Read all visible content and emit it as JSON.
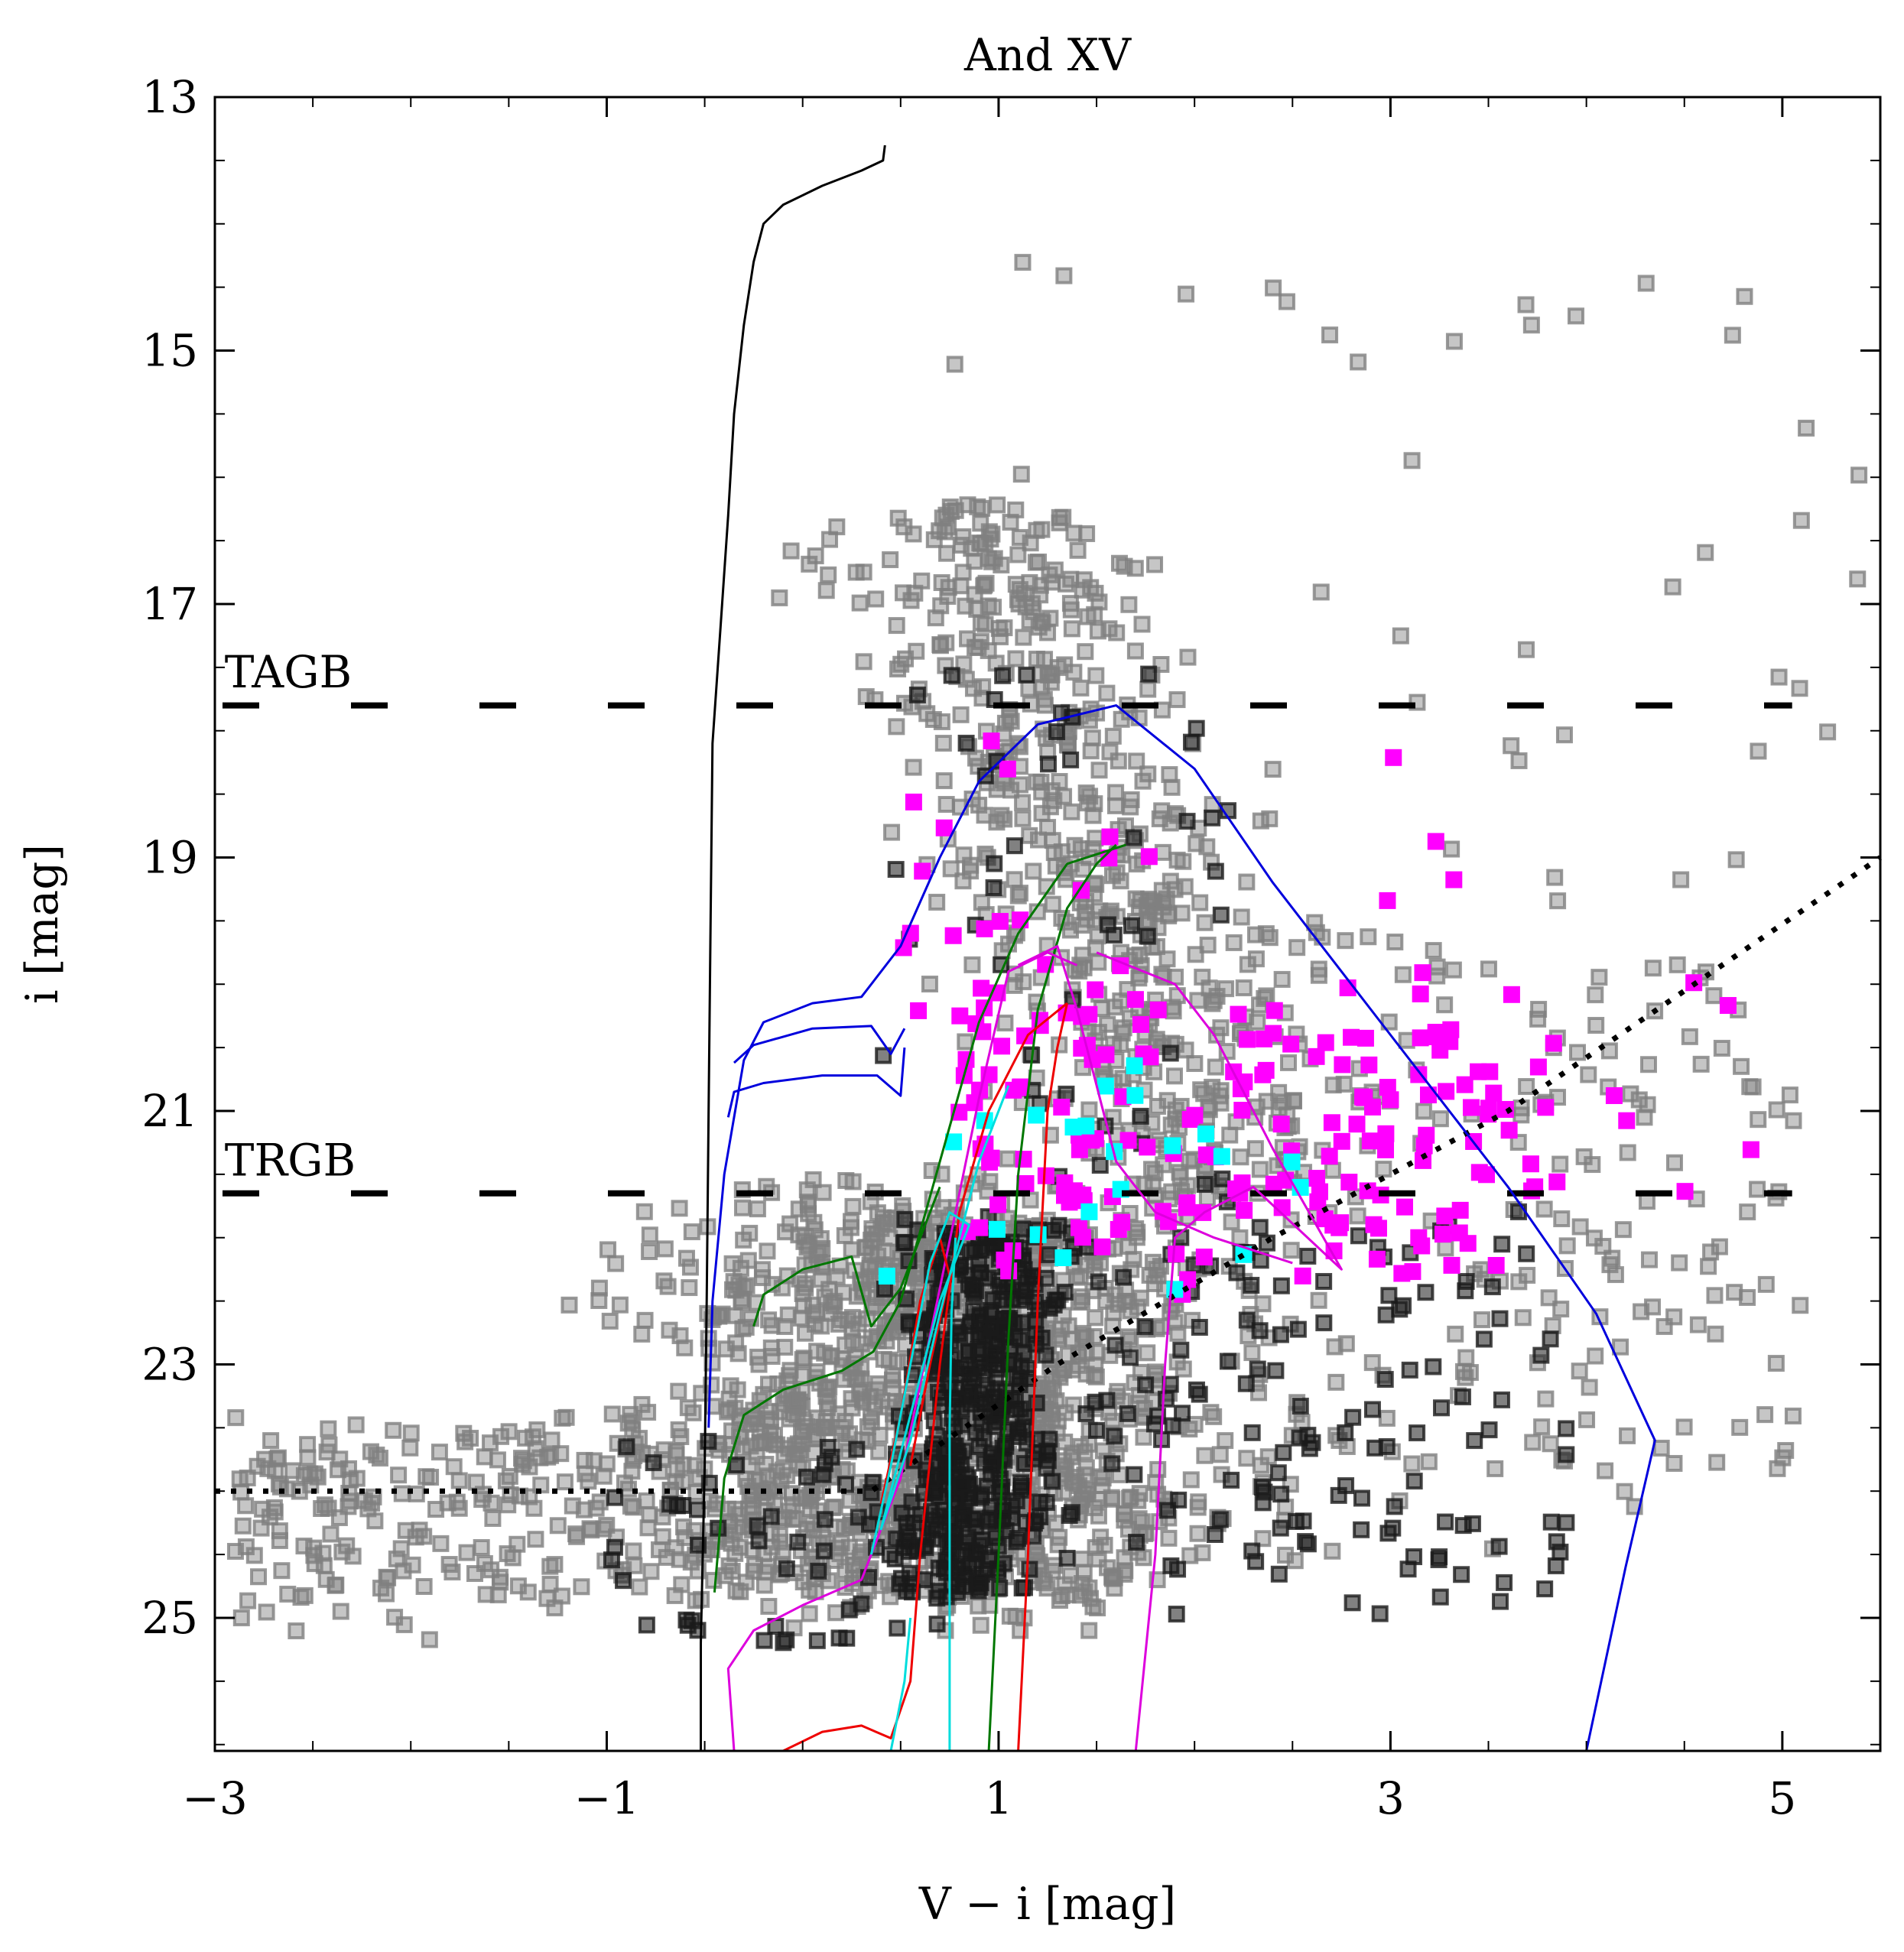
{
  "chart_data": {
    "type": "scatter",
    "title": "And XV",
    "xlabel": "V − i [mag]",
    "ylabel": "i [mag]",
    "xlim": [
      -3,
      5.5
    ],
    "ylim": [
      26.05,
      13
    ],
    "y_inverted": true,
    "grid": false,
    "legend": "none",
    "x_ticks": [
      -3,
      -1,
      1,
      3,
      5
    ],
    "x_tick_labels": [
      "−3",
      "−1",
      "1",
      "3",
      "5"
    ],
    "y_ticks": [
      13,
      15,
      17,
      19,
      21,
      23,
      25
    ],
    "y_tick_labels": [
      "13",
      "15",
      "17",
      "19",
      "21",
      "23",
      "25"
    ],
    "annotations": [
      {
        "text": "TAGB",
        "x": -2.95,
        "y": 17.55
      },
      {
        "text": "TRGB",
        "x": -2.95,
        "y": 21.4
      }
    ],
    "reference_lines": [
      {
        "kind": "dashed",
        "y": 17.8,
        "x": [
          -3,
          5.05
        ],
        "color": "#000000"
      },
      {
        "kind": "dashed",
        "y": 21.65,
        "x": [
          -3,
          5.05
        ],
        "color": "#000000"
      },
      {
        "kind": "dotted",
        "points": [
          [
            -3,
            24.0
          ],
          [
            0.35,
            24.0
          ],
          [
            1.3,
            23.0
          ],
          [
            2.4,
            22.0
          ],
          [
            3.6,
            21.0
          ],
          [
            5.5,
            19.0
          ]
        ],
        "color": "#000000"
      }
    ],
    "isochrones": [
      {
        "color": "#000000",
        "points": [
          [
            0.42,
            13.38
          ],
          [
            0.41,
            13.5
          ],
          [
            0.3,
            13.58
          ],
          [
            0.1,
            13.7
          ],
          [
            -0.1,
            13.85
          ],
          [
            -0.2,
            14.0
          ],
          [
            -0.25,
            14.3
          ],
          [
            -0.3,
            14.8
          ],
          [
            -0.35,
            15.5
          ],
          [
            -0.38,
            16.3
          ],
          [
            -0.42,
            17.2
          ],
          [
            -0.46,
            18.1
          ],
          [
            -0.47,
            19.5
          ],
          [
            -0.48,
            21.0
          ],
          [
            -0.49,
            22.5
          ],
          [
            -0.5,
            23.8
          ],
          [
            -0.52,
            25.2
          ],
          [
            -0.52,
            26.05
          ]
        ]
      },
      {
        "color": "#0000dd",
        "points": [
          [
            -0.48,
            23.5
          ],
          [
            -0.46,
            22.5
          ],
          [
            -0.4,
            21.5
          ],
          [
            -0.35,
            21.05
          ],
          [
            -0.3,
            20.6
          ],
          [
            -0.2,
            20.3
          ],
          [
            0.05,
            20.15
          ],
          [
            0.3,
            20.1
          ],
          [
            0.5,
            19.7
          ],
          [
            0.7,
            19.0
          ],
          [
            0.9,
            18.4
          ],
          [
            1.2,
            17.95
          ],
          [
            1.6,
            17.8
          ],
          [
            2.0,
            18.3
          ],
          [
            2.4,
            19.2
          ],
          [
            3.0,
            20.4
          ],
          [
            3.6,
            21.6
          ],
          [
            4.05,
            22.6
          ],
          [
            4.35,
            23.6
          ],
          [
            4.2,
            24.6
          ],
          [
            4.0,
            26.05
          ]
        ]
      },
      {
        "color": "#0000dd",
        "points": [
          [
            -0.38,
            21.05
          ],
          [
            -0.35,
            20.85
          ],
          [
            -0.2,
            20.78
          ],
          [
            0.1,
            20.72
          ],
          [
            0.38,
            20.72
          ],
          [
            0.5,
            20.88
          ],
          [
            0.52,
            20.5
          ]
        ]
      },
      {
        "color": "#0000dd",
        "points": [
          [
            -0.35,
            20.62
          ],
          [
            -0.25,
            20.48
          ],
          [
            0.05,
            20.35
          ],
          [
            0.35,
            20.33
          ],
          [
            0.45,
            20.55
          ],
          [
            0.52,
            20.35
          ]
        ]
      },
      {
        "color": "#007700",
        "points": [
          [
            -0.45,
            24.8
          ],
          [
            -0.4,
            23.9
          ],
          [
            -0.3,
            23.4
          ],
          [
            -0.1,
            23.2
          ],
          [
            0.2,
            23.05
          ],
          [
            0.36,
            22.9
          ],
          [
            0.5,
            22.5
          ],
          [
            0.7,
            21.4
          ],
          [
            0.9,
            20.3
          ],
          [
            1.1,
            19.6
          ],
          [
            1.35,
            19.05
          ],
          [
            1.65,
            18.9
          ]
        ]
      },
      {
        "color": "#007700",
        "points": [
          [
            -0.25,
            22.7
          ],
          [
            -0.2,
            22.45
          ],
          [
            0.0,
            22.25
          ],
          [
            0.25,
            22.15
          ],
          [
            0.35,
            22.7
          ],
          [
            0.5,
            22.4
          ],
          [
            0.7,
            21.6
          ]
        ]
      },
      {
        "color": "#007700",
        "points": [
          [
            0.95,
            26.05
          ],
          [
            1.0,
            24.5
          ],
          [
            1.05,
            22.8
          ],
          [
            1.1,
            21.5
          ],
          [
            1.2,
            20.2
          ],
          [
            1.35,
            19.4
          ],
          [
            1.5,
            19.05
          ],
          [
            1.6,
            18.9
          ]
        ]
      },
      {
        "color": "#dd00dd",
        "points": [
          [
            -0.35,
            26.05
          ],
          [
            -0.38,
            25.4
          ],
          [
            -0.25,
            25.1
          ],
          [
            0.0,
            24.9
          ],
          [
            0.3,
            24.7
          ],
          [
            0.5,
            23.9
          ],
          [
            0.7,
            22.4
          ],
          [
            0.9,
            20.9
          ],
          [
            1.05,
            19.9
          ],
          [
            1.25,
            19.75
          ],
          [
            1.4,
            19.85
          ]
        ]
      },
      {
        "color": "#dd00dd",
        "points": [
          [
            1.7,
            26.05
          ],
          [
            1.8,
            24.5
          ],
          [
            1.85,
            23.0
          ],
          [
            1.9,
            22.0
          ],
          [
            2.05,
            21.8
          ],
          [
            2.3,
            21.6
          ],
          [
            2.75,
            22.25
          ],
          [
            2.4,
            21.3
          ],
          [
            2.1,
            20.4
          ],
          [
            1.9,
            20.0
          ],
          [
            1.5,
            19.75
          ]
        ]
      },
      {
        "color": "#dd00dd",
        "points": [
          [
            1.1,
            19.85
          ],
          [
            1.3,
            19.7
          ],
          [
            1.4,
            20.2
          ],
          [
            1.5,
            20.8
          ],
          [
            1.6,
            21.4
          ],
          [
            1.8,
            21.8
          ],
          [
            2.1,
            22.0
          ],
          [
            2.5,
            22.2
          ]
        ]
      },
      {
        "color": "#ee0000",
        "points": [
          [
            -0.1,
            26.05
          ],
          [
            0.1,
            25.9
          ],
          [
            0.3,
            25.85
          ],
          [
            0.45,
            25.95
          ],
          [
            0.55,
            25.5
          ],
          [
            0.6,
            24.5
          ],
          [
            0.7,
            23.0
          ],
          [
            0.8,
            21.8
          ],
          [
            0.95,
            21.0
          ],
          [
            1.15,
            20.4
          ],
          [
            1.35,
            20.15
          ]
        ]
      },
      {
        "color": "#ee0000",
        "points": [
          [
            1.1,
            26.05
          ],
          [
            1.15,
            24.5
          ],
          [
            1.2,
            22.5
          ],
          [
            1.25,
            21.0
          ],
          [
            1.3,
            20.5
          ],
          [
            1.35,
            20.15
          ]
        ]
      },
      {
        "color": "#ee0000",
        "points": [
          [
            0.4,
            24.1
          ],
          [
            0.5,
            23.4
          ],
          [
            0.6,
            22.5
          ],
          [
            0.7,
            22.0
          ],
          [
            0.75,
            22.3
          ],
          [
            0.65,
            23.0
          ],
          [
            0.55,
            23.8
          ]
        ]
      },
      {
        "color": "#00dddd",
        "points": [
          [
            0.45,
            26.05
          ],
          [
            0.52,
            25.5
          ],
          [
            0.55,
            25.0
          ]
        ]
      },
      {
        "color": "#00dddd",
        "points": [
          [
            0.75,
            26.05
          ],
          [
            0.75,
            24.5
          ],
          [
            0.75,
            23.5
          ],
          [
            0.76,
            22.6
          ],
          [
            0.78,
            22.0
          ]
        ]
      },
      {
        "color": "#00dddd",
        "points": [
          [
            0.35,
            24.5
          ],
          [
            0.45,
            23.8
          ],
          [
            0.55,
            23.0
          ],
          [
            0.65,
            22.2
          ],
          [
            0.75,
            21.8
          ],
          [
            0.85,
            21.9
          ],
          [
            0.7,
            22.5
          ],
          [
            0.55,
            23.4
          ],
          [
            0.4,
            24.3
          ],
          [
            0.55,
            23.6
          ],
          [
            0.7,
            22.6
          ],
          [
            0.9,
            21.4
          ],
          [
            1.05,
            20.8
          ]
        ]
      }
    ],
    "series": [
      {
        "name": "",
        "color": "#808080",
        "marker": "square-outline",
        "n_points": 2500
      },
      {
        "name": "",
        "color": "#1a1a1a",
        "marker": "square-outline",
        "n_points": 700
      },
      {
        "name": "",
        "color": "#ff00ff",
        "marker": "square-filled",
        "n_points": 210
      },
      {
        "name": "",
        "color": "#00ffff",
        "marker": "square-filled",
        "n_points": 22
      }
    ]
  }
}
